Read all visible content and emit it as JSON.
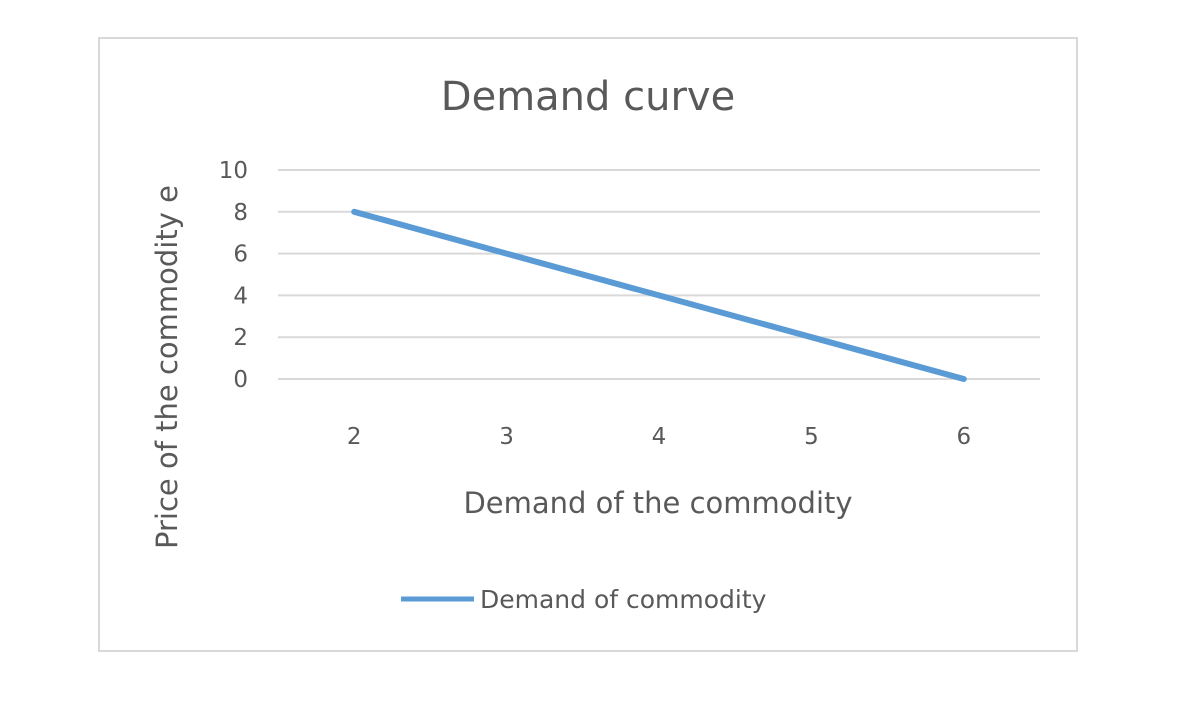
{
  "chart_data": {
    "type": "line",
    "title": "Demand curve",
    "xlabel": "Demand of the commodity",
    "ylabel": "Price of the commodity e",
    "categories": [
      "2",
      "3",
      "4",
      "5",
      "6"
    ],
    "series": [
      {
        "name": "Demand of commodity",
        "values": [
          8,
          6,
          4,
          2,
          0
        ]
      }
    ],
    "ylim": [
      0,
      10
    ],
    "yticks": [
      "0",
      "2",
      "4",
      "6",
      "8",
      "10"
    ],
    "grid": true,
    "legend": "bottom",
    "colors": {
      "line": "#5b9bd5",
      "grid": "#d9d9d9",
      "text": "#595959"
    }
  }
}
